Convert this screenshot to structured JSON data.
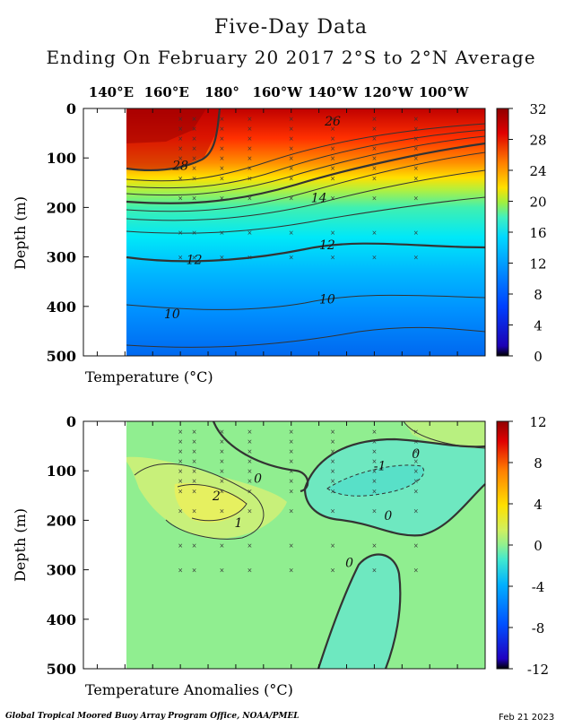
{
  "title": "Five-Day Data",
  "subtitle": "Ending On February 20 2017   2°S to 2°N Average",
  "footer_left": "Global Tropical Moored Buoy Array Program Office, NOAA/PMEL",
  "footer_right": "Feb 21 2023",
  "x_ticks": [
    "140°E",
    "160°E",
    "180°",
    "160°W",
    "140°W",
    "120°W",
    "100°W"
  ],
  "x_tick_lon": [
    140,
    160,
    180,
    200,
    220,
    240,
    260
  ],
  "x_range_lon": [
    130,
    275
  ],
  "data_start_lon": 147,
  "chart_data": [
    {
      "type": "heatmap",
      "xlabel": "Temperature (°C)",
      "ylabel": "Depth (m)",
      "ylim": [
        0,
        500
      ],
      "y_ticks": [
        0,
        100,
        200,
        300,
        400,
        500
      ],
      "colorbar_ticks": [
        0,
        4,
        8,
        12,
        16,
        20,
        24,
        28,
        32
      ],
      "colorbar_range": [
        0,
        32
      ],
      "colors": [
        "#000000",
        "#1c00b4",
        "#0040ff",
        "#0090ff",
        "#00d8ff",
        "#40f0c0",
        "#a0f040",
        "#ffe000",
        "#ff8000",
        "#e00000",
        "#900000"
      ],
      "contour_labels": [
        {
          "text": "26",
          "lon": 220,
          "depth": 25
        },
        {
          "text": "28",
          "lon": 165,
          "depth": 115
        },
        {
          "text": "14",
          "lon": 215,
          "depth": 180
        },
        {
          "text": "12",
          "lon": 170,
          "depth": 305
        },
        {
          "text": "12",
          "lon": 218,
          "depth": 275
        },
        {
          "text": "10",
          "lon": 162,
          "depth": 415
        },
        {
          "text": "10",
          "lon": 218,
          "depth": 385
        }
      ]
    },
    {
      "type": "heatmap",
      "xlabel": "Temperature Anomalies (°C)",
      "ylabel": "Depth (m)",
      "ylim": [
        0,
        500
      ],
      "y_ticks": [
        0,
        100,
        200,
        300,
        400,
        500
      ],
      "colorbar_ticks": [
        -12,
        -8,
        -4,
        0,
        4,
        8,
        12
      ],
      "colorbar_range": [
        -12,
        12
      ],
      "colors": [
        "#000000",
        "#2000c0",
        "#0050ff",
        "#00b0ff",
        "#40e8d0",
        "#90f090",
        "#d0f060",
        "#ffe000",
        "#ff8000",
        "#e00000",
        "#900000"
      ],
      "contour_labels": [
        {
          "text": "0",
          "lon": 226,
          "depth": 285
        },
        {
          "text": "0",
          "lon": 193,
          "depth": 115
        },
        {
          "text": "0",
          "lon": 240,
          "depth": 190
        },
        {
          "text": "0",
          "lon": 250,
          "depth": 65
        },
        {
          "text": "-1",
          "lon": 237,
          "depth": 90
        },
        {
          "text": "2",
          "lon": 178,
          "depth": 150
        },
        {
          "text": "1",
          "lon": 186,
          "depth": 205
        }
      ]
    }
  ]
}
